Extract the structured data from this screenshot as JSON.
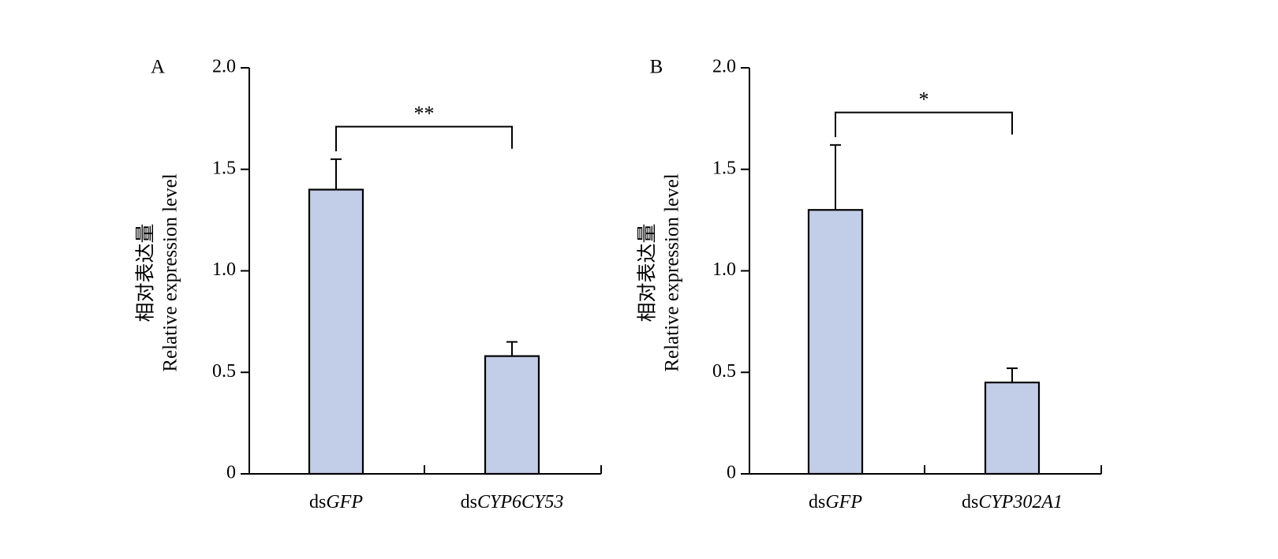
{
  "chart_data": [
    {
      "panel_label": "A",
      "type": "bar",
      "categories": [
        {
          "prefix": "ds",
          "italic": "GFP"
        },
        {
          "prefix": "ds",
          "italic": "CYP6CY53"
        }
      ],
      "values": [
        1.4,
        0.58
      ],
      "errors": [
        0.15,
        0.07
      ],
      "ylabel_cn": "相对表达量",
      "ylabel_en": "Relative expression level",
      "ylim": [
        0,
        2.0
      ],
      "yticks": [
        "0",
        "0.5",
        "1.0",
        "1.5",
        "2.0"
      ],
      "ytick_values": [
        0,
        0.5,
        1.0,
        1.5,
        2.0
      ],
      "significance": {
        "text": "**",
        "bracket_y": 1.71
      },
      "bar_color": "#c2cde8"
    },
    {
      "panel_label": "B",
      "type": "bar",
      "categories": [
        {
          "prefix": "ds",
          "italic": "GFP"
        },
        {
          "prefix": "ds",
          "italic": "CYP302A1"
        }
      ],
      "values": [
        1.3,
        0.45
      ],
      "errors": [
        0.32,
        0.07
      ],
      "ylabel_cn": "相对表达量",
      "ylabel_en": "Relative expression level",
      "ylim": [
        0,
        2.0
      ],
      "yticks": [
        "0",
        "0.5",
        "1.0",
        "1.5",
        "2.0"
      ],
      "ytick_values": [
        0,
        0.5,
        1.0,
        1.5,
        2.0
      ],
      "significance": {
        "text": "*",
        "bracket_y": 1.78
      },
      "bar_color": "#c2cde8"
    }
  ]
}
